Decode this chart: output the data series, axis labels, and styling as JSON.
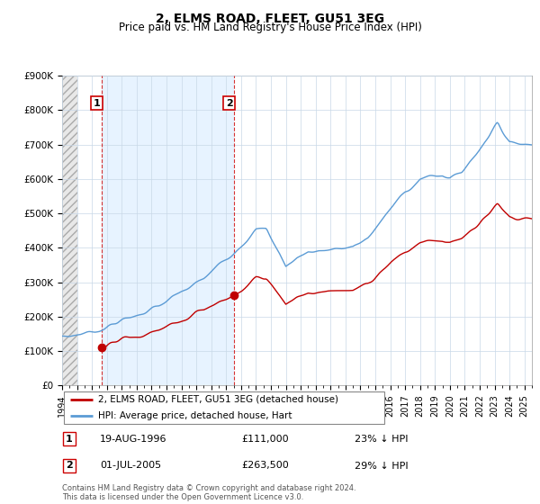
{
  "title": "2, ELMS ROAD, FLEET, GU51 3EG",
  "subtitle": "Price paid vs. HM Land Registry's House Price Index (HPI)",
  "ylim": [
    0,
    900000
  ],
  "yticks": [
    0,
    100000,
    200000,
    300000,
    400000,
    500000,
    600000,
    700000,
    800000,
    900000
  ],
  "ytick_labels": [
    "£0",
    "£100K",
    "£200K",
    "£300K",
    "£400K",
    "£500K",
    "£600K",
    "£700K",
    "£800K",
    "£900K"
  ],
  "sale1_date": 1996.63,
  "sale1_price": 111000,
  "sale2_date": 2005.5,
  "sale2_price": 263500,
  "hpi_color": "#5b9bd5",
  "price_color": "#c00000",
  "shade_color": "#ddeeff",
  "legend_price_label": "2, ELMS ROAD, FLEET, GU51 3EG (detached house)",
  "legend_hpi_label": "HPI: Average price, detached house, Hart",
  "annotation1_date_str": "19-AUG-1996",
  "annotation1_price_str": "£111,000",
  "annotation1_pct_str": "23% ↓ HPI",
  "annotation2_date_str": "01-JUL-2005",
  "annotation2_price_str": "£263,500",
  "annotation2_pct_str": "29% ↓ HPI",
  "footer": "Contains HM Land Registry data © Crown copyright and database right 2024.\nThis data is licensed under the Open Government Licence v3.0.",
  "grid_color": "#c8d8e8",
  "title_fontsize": 10,
  "subtitle_fontsize": 8.5,
  "tick_fontsize": 7.5
}
